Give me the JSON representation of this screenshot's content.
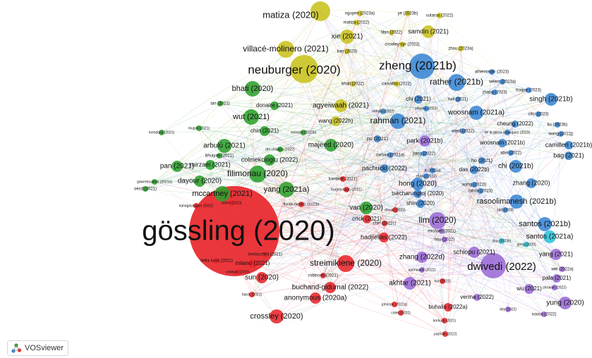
{
  "brand": {
    "name": "VOSviewer",
    "icon": "vosviewer-logo-icon"
  },
  "clusters": {
    "red": "#e8262b",
    "green": "#2ca02c",
    "blue": "#3a86d4",
    "yellow": "#c9c21c",
    "purple": "#9b6bd6",
    "cyan": "#2fc4d8"
  },
  "nodes": [
    {
      "label": "gössling (2020)",
      "c": "red",
      "s": 64
    },
    {
      "label": "neuburger (2020)",
      "c": "yellow",
      "s": 20
    },
    {
      "label": "zheng (2021b)",
      "c": "blue",
      "s": 18
    },
    {
      "label": "matiza (2020)",
      "c": "yellow",
      "s": 14
    },
    {
      "label": "villacé-molinero (2021)",
      "c": "yellow",
      "s": 12
    },
    {
      "label": "xie (2021)",
      "c": "yellow",
      "s": 10
    },
    {
      "label": "samdin (2021)",
      "c": "yellow",
      "s": 9
    },
    {
      "label": "nguyen (2023a)",
      "c": "yellow",
      "s": 4
    },
    {
      "label": "ye (2023b)",
      "c": "yellow",
      "s": 4
    },
    {
      "label": "sutarso (2022)",
      "c": "yellow",
      "s": 4
    },
    {
      "label": "matiza (2022)",
      "c": "yellow",
      "s": 4
    },
    {
      "label": "libin (2022)",
      "c": "yellow",
      "s": 4
    },
    {
      "label": "crowley-cyr (2022)",
      "c": "yellow",
      "s": 4
    },
    {
      "label": "lian (2023)",
      "c": "yellow",
      "s": 4
    },
    {
      "label": "zhou (2023a)",
      "c": "yellow",
      "s": 4
    },
    {
      "label": "bhati (2020)",
      "c": "green",
      "s": 11
    },
    {
      "label": "rather (2021b)",
      "c": "blue",
      "s": 12
    },
    {
      "label": "bhati (2022)",
      "c": "yellow",
      "s": 4
    },
    {
      "label": "carvalho (2022)",
      "c": "yellow",
      "s": 4
    },
    {
      "label": "alhemimah (2023)",
      "c": "blue",
      "s": 4
    },
    {
      "label": "selem (2023a)",
      "c": "blue",
      "s": 4
    },
    {
      "label": "zhang (2023)",
      "c": "blue",
      "s": 4
    },
    {
      "label": "hoque (2023)",
      "c": "blue",
      "s": 4
    },
    {
      "label": "singh (2021b)",
      "c": "blue",
      "s": 9
    },
    {
      "label": "tan (2021)",
      "c": "green",
      "s": 4
    },
    {
      "label": "donaire (2021)",
      "c": "green",
      "s": 6
    },
    {
      "label": "agyeiwaah (2021)",
      "c": "yellow",
      "s": 9
    },
    {
      "label": "chi (2021)",
      "c": "blue",
      "s": 6
    },
    {
      "label": "hall (2021)",
      "c": "blue",
      "s": 4
    },
    {
      "label": "woosnam (2021a)",
      "c": "blue",
      "s": 10
    },
    {
      "label": "wut (2021)",
      "c": "green",
      "s": 11
    },
    {
      "label": "wang (2022h)",
      "c": "yellow",
      "s": 7
    },
    {
      "label": "rahman (2021)",
      "c": "blue",
      "s": 11
    },
    {
      "label": "cheung (2022)",
      "c": "blue",
      "s": 5
    },
    {
      "label": "cifci (2023)",
      "c": "blue",
      "s": 4
    },
    {
      "label": "mugizi (2021)",
      "c": "green",
      "s": 4
    },
    {
      "label": "mendoza (2021)",
      "c": "green",
      "s": 4
    },
    {
      "label": "chin (2021)",
      "c": "green",
      "s": 7
    },
    {
      "label": "veeman (2022b)",
      "c": "green",
      "s": 4
    },
    {
      "label": "ward (2022)",
      "c": "blue",
      "s": 4
    },
    {
      "label": "de la garza velasquez (2023)",
      "c": "blue",
      "s": 4
    },
    {
      "label": "liu (2023b)",
      "c": "blue",
      "s": 4
    },
    {
      "label": "wang (2022j)",
      "c": "blue",
      "s": 4
    },
    {
      "label": "park (2021b)",
      "c": "purple",
      "s": 8
    },
    {
      "label": "pu (2021)",
      "c": "blue",
      "s": 5
    },
    {
      "label": "woosnam (2021b)",
      "c": "blue",
      "s": 6
    },
    {
      "label": "camilleri (2021b)",
      "c": "blue",
      "s": 6
    },
    {
      "label": "arbulú (2021)",
      "c": "green",
      "s": 10
    },
    {
      "label": "majeed (2020)",
      "c": "green",
      "s": 9
    },
    {
      "label": "zaman (2021a)",
      "c": "blue",
      "s": 4
    },
    {
      "label": "jiang (2022)",
      "c": "blue",
      "s": 4
    },
    {
      "label": "atlei (2022)",
      "c": "blue",
      "s": 4
    },
    {
      "label": "bag (2021)",
      "c": "blue",
      "s": 6
    },
    {
      "label": "bhuiyan (2021)",
      "c": "green",
      "s": 4
    },
    {
      "label": "del chiappa (2022)",
      "c": "green",
      "s": 4
    },
    {
      "label": "colmekcioglu (2022)",
      "c": "green",
      "s": 8
    },
    {
      "label": "pan (2021)",
      "c": "green",
      "s": 8
    },
    {
      "label": "mirzaei (2021)",
      "c": "green",
      "s": 7
    },
    {
      "label": "pachucki (2022)",
      "c": "blue",
      "s": 6
    },
    {
      "label": "chi (2021b)",
      "c": "blue",
      "s": 9
    },
    {
      "label": "das (2022b)",
      "c": "blue",
      "s": 6
    },
    {
      "label": "filimonau (2020)",
      "c": "green",
      "s": 12
    },
    {
      "label": "gowreesunkar (2021a)",
      "c": "green",
      "s": 4
    },
    {
      "label": "oecd (2021)",
      "c": "green",
      "s": 4
    },
    {
      "label": "dayour (2020)",
      "c": "green",
      "s": 8
    },
    {
      "label": "hong (2020)",
      "c": "blue",
      "s": 9
    },
    {
      "label": "zhang (2020)",
      "c": "blue",
      "s": 7
    },
    {
      "label": "kontarie (2021)",
      "c": "red",
      "s": 4
    },
    {
      "label": "borges-tiago (2021)",
      "c": "red",
      "s": 4
    },
    {
      "label": "tsecharungroj (2020)",
      "c": "blue",
      "s": 6
    },
    {
      "label": "mccartney (2021)",
      "c": "green",
      "s": 11
    },
    {
      "label": "yang (2021a)",
      "c": "green",
      "s": 11
    },
    {
      "label": "tahon (2023)",
      "c": "blue",
      "s": 4
    },
    {
      "label": "rasoolimanesh (2021b)",
      "c": "blue",
      "s": 10
    },
    {
      "label": "kanagasingam (2022)",
      "c": "red",
      "s": 4
    },
    {
      "label": "salem (2023)",
      "c": "red",
      "s": 4
    },
    {
      "label": "florido-benítez (2022b)",
      "c": "red",
      "s": 4
    },
    {
      "label": "van (2020)",
      "c": "green",
      "s": 9
    },
    {
      "label": "shin (2020)",
      "c": "blue",
      "s": 6
    },
    {
      "label": "sarl (2023)",
      "c": "blue",
      "s": 4
    },
    {
      "label": "davari (2023)",
      "c": "red",
      "s": 4
    },
    {
      "label": "crick (2021)",
      "c": "red",
      "s": 6
    },
    {
      "label": "chin (2022c)",
      "c": "red",
      "s": 4
    },
    {
      "label": "lim (2020)",
      "c": "purple",
      "s": 12
    },
    {
      "label": "santos (2021b)",
      "c": "blue",
      "s": 10
    },
    {
      "label": "michael (2021)",
      "c": "purple",
      "s": 4
    },
    {
      "label": "hadjielias (2022)",
      "c": "red",
      "s": 7
    },
    {
      "label": "hsu (2022)",
      "c": "purple",
      "s": 4
    },
    {
      "label": "santos (2021a)",
      "c": "cyan",
      "s": 9
    },
    {
      "label": "zhu (2023b)",
      "c": "cyan",
      "s": 4
    },
    {
      "label": "geng (2020)",
      "c": "cyan",
      "s": 4
    },
    {
      "label": "schiopu (2021)",
      "c": "purple",
      "s": 8
    },
    {
      "label": "yang (2021)",
      "c": "purple",
      "s": 8
    },
    {
      "label": "bertacchini (2021)",
      "c": "red",
      "s": 4
    },
    {
      "label": "della lucia (2021)",
      "c": "red",
      "s": 4
    },
    {
      "label": "milano (2021)",
      "c": "red",
      "s": 6
    },
    {
      "label": "ordeljan (2020)",
      "c": "red",
      "s": 4
    },
    {
      "label": "streimikiene (2020)",
      "c": "red",
      "s": 12
    },
    {
      "label": "zhang (2022d)",
      "c": "purple",
      "s": 8
    },
    {
      "label": "dwivedi (2022)",
      "c": "purple",
      "s": 18
    },
    {
      "label": "wei (2022a)",
      "c": "purple",
      "s": 4
    },
    {
      "label": "sun (2020)",
      "c": "red",
      "s": 8
    },
    {
      "label": "robinson (2021)",
      "c": "red",
      "s": 4
    },
    {
      "label": "aprinawati (2022)",
      "c": "purple",
      "s": 4
    },
    {
      "label": "pala (2021)",
      "c": "purple",
      "s": 6
    },
    {
      "label": "shravan (2022)",
      "c": "purple",
      "s": 4
    },
    {
      "label": "hardy (2021)",
      "c": "red",
      "s": 4
    },
    {
      "label": "buchand-gidumal (2022)",
      "c": "red",
      "s": 8
    },
    {
      "label": "akhtar (2021)",
      "c": "purple",
      "s": 9
    },
    {
      "label": "hur (2022)",
      "c": "red",
      "s": 4
    },
    {
      "label": "wu (2021)",
      "c": "purple",
      "s": 7
    },
    {
      "label": "anonymous (2020a)",
      "c": "red",
      "s": 8
    },
    {
      "label": "verma (2022)",
      "c": "purple",
      "s": 5
    },
    {
      "label": "yung (2020)",
      "c": "purple",
      "s": 9
    },
    {
      "label": "johnson (2022a)",
      "c": "red",
      "s": 4
    },
    {
      "label": "buhalis (2022a)",
      "c": "red",
      "s": 6
    },
    {
      "label": "dey (2022)",
      "c": "purple",
      "s": 4
    },
    {
      "label": "coles (2022)",
      "c": "red",
      "s": 4
    },
    {
      "label": "sousa (2022)",
      "c": "purple",
      "s": 4
    },
    {
      "label": "crossley (2020)",
      "c": "red",
      "s": 10
    },
    {
      "label": "korkuta (2021)",
      "c": "red",
      "s": 4
    },
    {
      "label": "yasmini (2022)",
      "c": "red",
      "s": 4
    },
    {
      "label": "mihalic (2022)",
      "c": "blue",
      "s": 4
    },
    {
      "label": "alhama (2023)",
      "c": "blue",
      "s": 4
    },
    {
      "label": "fu (2022a)",
      "c": "blue",
      "s": 4
    },
    {
      "label": "ho (2021)",
      "c": "blue",
      "s": 5
    },
    {
      "label": "wang (2022i)",
      "c": "blue",
      "s": 4
    },
    {
      "label": "zhang (2022)",
      "c": "blue",
      "s": 4
    }
  ]
}
